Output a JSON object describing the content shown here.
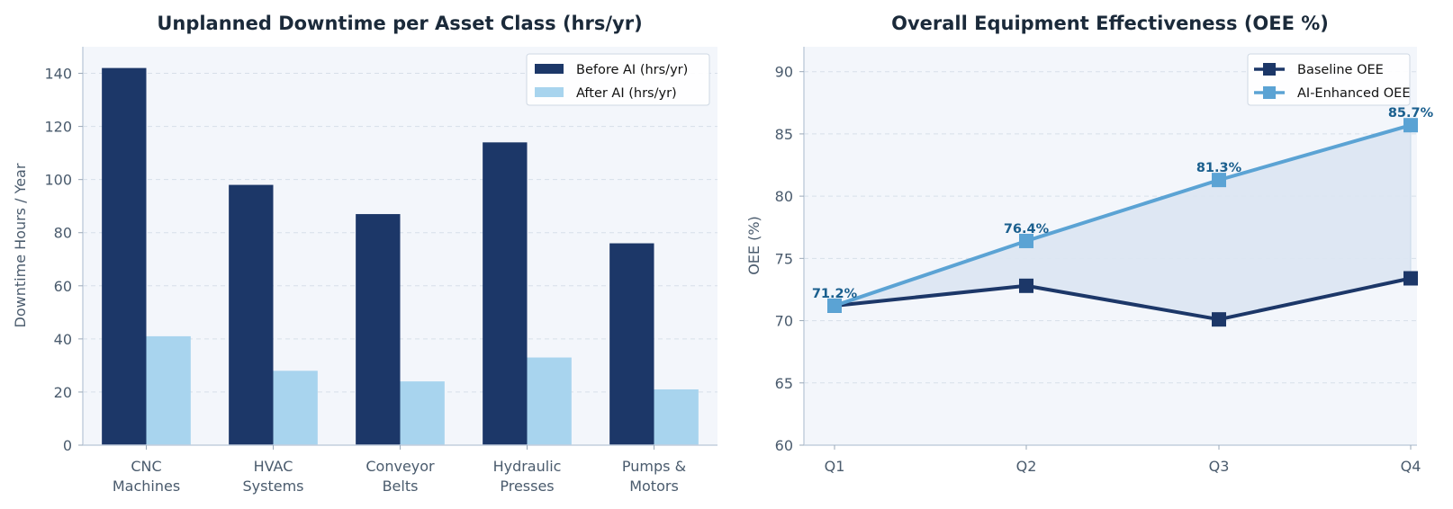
{
  "chart_data": [
    {
      "type": "bar",
      "title": "Unplanned Downtime per Asset Class (hrs/yr)",
      "xlabel": "",
      "ylabel": "Downtime Hours / Year",
      "categories": [
        [
          "CNC",
          "Machines"
        ],
        [
          "HVAC",
          "Systems"
        ],
        [
          "Conveyor",
          "Belts"
        ],
        [
          "Hydraulic",
          "Presses"
        ],
        [
          "Pumps &",
          "Motors"
        ]
      ],
      "series": [
        {
          "name": "Before AI (hrs/yr)",
          "values": [
            142,
            98,
            87,
            114,
            76
          ],
          "color": "#1c3768"
        },
        {
          "name": "After AI (hrs/yr)",
          "values": [
            41,
            28,
            24,
            33,
            21
          ],
          "color": "#a8d4ee"
        }
      ],
      "ylim": [
        0,
        150
      ],
      "yticks": [
        0,
        20,
        40,
        60,
        80,
        100,
        120,
        140
      ],
      "grid": true,
      "legend": "top-right"
    },
    {
      "type": "line",
      "title": "Overall Equipment Effectiveness (OEE %)",
      "xlabel": "",
      "ylabel": "OEE (%)",
      "x": [
        "Q1",
        "Q2",
        "Q3",
        "Q4"
      ],
      "series": [
        {
          "name": "Baseline OEE",
          "values": [
            71.2,
            72.8,
            70.1,
            73.4
          ],
          "color": "#1c3768",
          "marker": "square"
        },
        {
          "name": "AI-Enhanced OEE",
          "values": [
            71.2,
            76.4,
            81.3,
            85.7
          ],
          "color": "#5ba3d4",
          "marker": "square"
        }
      ],
      "data_labels": [
        "71.2%",
        "76.4%",
        "81.3%",
        "85.7%"
      ],
      "ylim": [
        60,
        92
      ],
      "yticks": [
        60,
        65,
        70,
        75,
        80,
        85,
        90
      ],
      "grid": true,
      "legend": "top-right",
      "fill_between": true
    }
  ],
  "colors": {
    "plot_background": "#f3f6fb",
    "grid": "#d7dfe9",
    "axis": "#c3cfdd",
    "label_color": "#1a5f8e",
    "fill": "#dbe6f2"
  }
}
